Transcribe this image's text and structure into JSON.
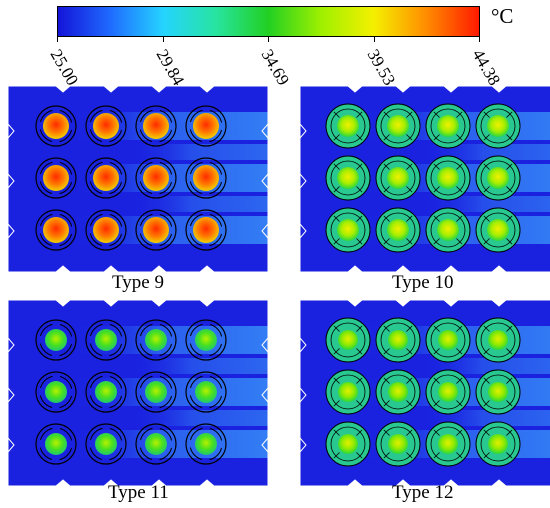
{
  "colorbar": {
    "unit": "°C",
    "stops": [
      "#1414d8",
      "#1f6bff",
      "#25d4ff",
      "#27e4a0",
      "#22d022",
      "#9ef000",
      "#f4f000",
      "#ff8c00",
      "#ff1a00"
    ],
    "tick_labels": [
      "25.00",
      "29.84",
      "34.69",
      "39.53",
      "44.38"
    ]
  },
  "panels": [
    {
      "label": "Type 9",
      "style": "hot"
    },
    {
      "label": "Type 10",
      "style": "warm-finned"
    },
    {
      "label": "Type 11",
      "style": "cool"
    },
    {
      "label": "Type 12",
      "style": "cool-finned"
    }
  ],
  "colors": {
    "background_fluid": "#1a22e0",
    "wake_fluid": "#3ea8ff",
    "panel_outline": "#ffffff"
  }
}
